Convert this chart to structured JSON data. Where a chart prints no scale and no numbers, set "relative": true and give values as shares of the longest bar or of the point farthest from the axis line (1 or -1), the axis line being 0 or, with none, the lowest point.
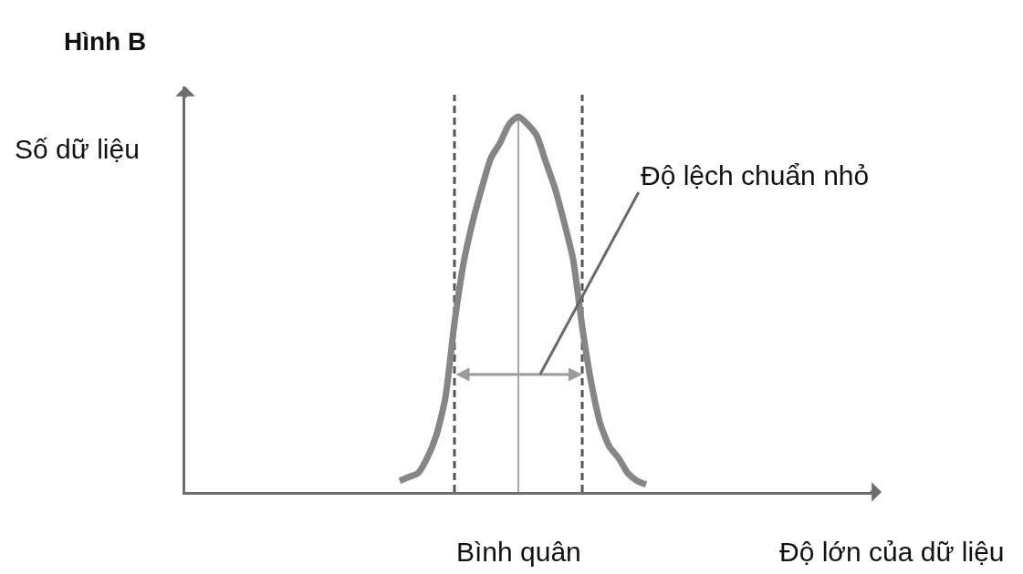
{
  "chart_data": {
    "type": "line",
    "title": "Hình B",
    "xlabel": "Độ lớn của dữ liệu",
    "ylabel": "Số dữ liệu",
    "relative": true,
    "categories": [
      null,
      null,
      null,
      null,
      null,
      null,
      null,
      null,
      null,
      null,
      null,
      null,
      null,
      null,
      null,
      null,
      null,
      null,
      null,
      null,
      null,
      null,
      null,
      null,
      null,
      null,
      null,
      null,
      null,
      null,
      null,
      null,
      null,
      null,
      null,
      null,
      null,
      null,
      null,
      null,
      null,
      null,
      null,
      null,
      null,
      null,
      null,
      null,
      null,
      null,
      null,
      null,
      null,
      null,
      null,
      null,
      null,
      null,
      null,
      null,
      null,
      null,
      null,
      null,
      null,
      null,
      null,
      null,
      null,
      null,
      null,
      null,
      null,
      null,
      null,
      null
    ],
    "color": "#868686",
    "values": [
      null,
      null,
      null,
      null,
      null,
      null,
      null,
      null,
      null,
      null,
      null,
      null,
      null,
      null,
      null,
      null,
      null,
      null,
      null,
      null,
      null,
      null,
      null,
      0.03,
      0.04,
      0.05,
      0.09,
      0.15,
      0.25,
      0.45,
      0.61,
      0.72,
      0.81,
      0.89,
      0.93,
      0.98,
      1,
      0.98,
      0.95,
      0.88,
      0.81,
      0.72,
      0.62,
      0.44,
      0.29,
      0.18,
      0.12,
      0.09,
      0.05,
      0.03,
      0.02,
      null,
      null,
      null,
      null,
      null,
      null,
      null,
      null,
      null,
      null,
      null,
      null,
      null,
      null,
      null,
      null,
      null,
      null,
      null,
      null,
      null,
      null,
      null,
      null,
      null
    ],
    "annotations": [
      "Bình quân",
      "Độ lệch chuẩn nhỏ"
    ]
  }
}
